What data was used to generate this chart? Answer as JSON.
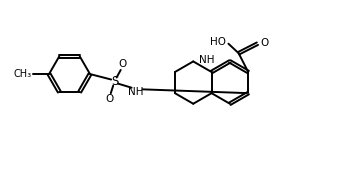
{
  "background_color": "#ffffff",
  "line_color": "#000000",
  "line_width": 1.4,
  "font_size": 7.5,
  "figsize": [
    3.54,
    1.72
  ],
  "dpi": 100,
  "xlim": [
    0,
    10
  ],
  "ylim": [
    0,
    5
  ]
}
